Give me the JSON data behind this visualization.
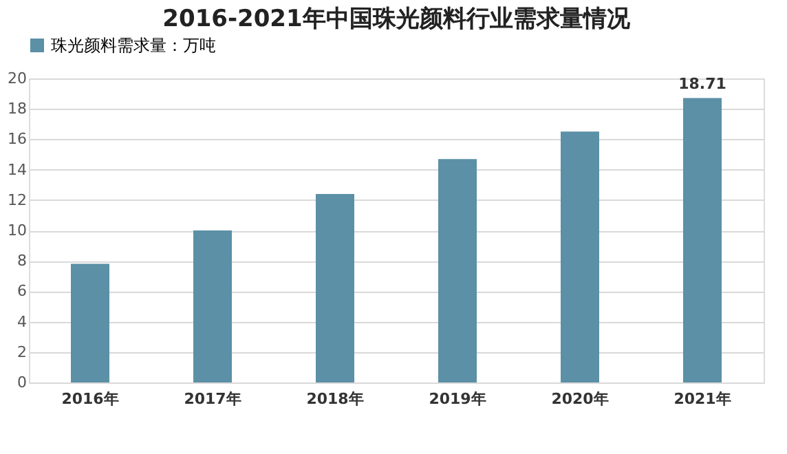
{
  "chart_data": {
    "type": "bar",
    "title": "2016-2021年中国珠光颜料行业需求量情况",
    "categories": [
      "2016年",
      "2017年",
      "2018年",
      "2019年",
      "2020年",
      "2021年"
    ],
    "series": [
      {
        "name": "珠光颜料需求量：万吨",
        "color": "#5b90a6",
        "values": [
          7.8,
          10.0,
          12.4,
          14.7,
          16.5,
          18.71
        ],
        "value_labels": [
          null,
          null,
          null,
          null,
          null,
          "18.71"
        ]
      }
    ],
    "ylim": [
      0,
      20
    ],
    "yticks": [
      0,
      2,
      4,
      6,
      8,
      10,
      12,
      14,
      16,
      18,
      20
    ],
    "grid": "y",
    "legend": "top"
  }
}
